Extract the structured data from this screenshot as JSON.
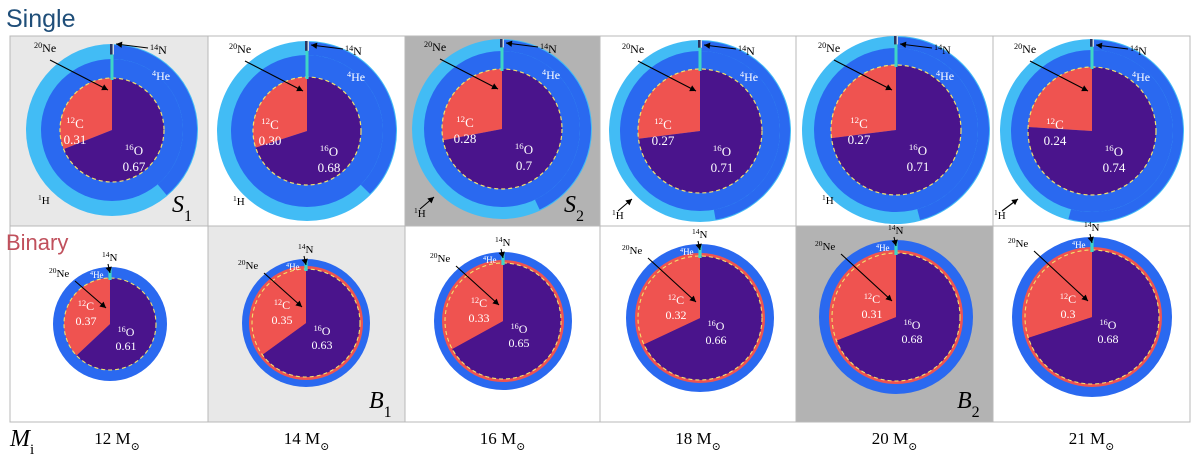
{
  "labels": {
    "single_row": "Single",
    "binary_row": "Binary",
    "mass_axis": "M",
    "mass_axis_sub": "i",
    "isotopes": {
      "ne": {
        "mass": "20",
        "sym": "Ne"
      },
      "n": {
        "mass": "14",
        "sym": "N"
      },
      "he": {
        "mass": "4",
        "sym": "He"
      },
      "h": {
        "mass": "1",
        "sym": "H"
      },
      "c": {
        "mass": "12",
        "sym": "C"
      },
      "o": {
        "mass": "16",
        "sym": "O"
      }
    }
  },
  "colors": {
    "hydrogen": "#42bcf5",
    "helium": "#2a69f0",
    "carbon": "#ef5350",
    "oxygen": "#4a148c",
    "nitrogen": "#3fd6c6",
    "neon": "#2a3560",
    "core_boundary": "#f2e26b",
    "single_title": "#1f4e79",
    "binary_title": "#c0505c",
    "panel_light": "#e8e8e8",
    "panel_dark": "#b3b3b3",
    "panel_white": "#ffffff"
  },
  "masses": [
    {
      "value": "12",
      "unit": "M",
      "sym": "⊙"
    },
    {
      "value": "14",
      "unit": "M",
      "sym": "⊙"
    },
    {
      "value": "16",
      "unit": "M",
      "sym": "⊙"
    },
    {
      "value": "18",
      "unit": "M",
      "sym": "⊙"
    },
    {
      "value": "20",
      "unit": "M",
      "sym": "⊙"
    },
    {
      "value": "21",
      "unit": "M",
      "sym": "⊙"
    }
  ],
  "single": [
    {
      "c12": "0.31",
      "o16": "0.67",
      "c_fraction": 0.31,
      "bg": "light",
      "marker": {
        "letter": "S",
        "sub": "1"
      }
    },
    {
      "c12": "0.30",
      "o16": "0.68",
      "c_fraction": 0.3,
      "bg": "white",
      "marker": null
    },
    {
      "c12": "0.28",
      "o16": "0.7",
      "c_fraction": 0.28,
      "bg": "dark",
      "marker": {
        "letter": "S",
        "sub": "2"
      }
    },
    {
      "c12": "0.27",
      "o16": "0.71",
      "c_fraction": 0.27,
      "bg": "white",
      "marker": null
    },
    {
      "c12": "0.27",
      "o16": "0.71",
      "c_fraction": 0.27,
      "bg": "white",
      "marker": null
    },
    {
      "c12": "0.24",
      "o16": "0.74",
      "c_fraction": 0.24,
      "bg": "white",
      "marker": null
    }
  ],
  "binary": [
    {
      "c12": "0.37",
      "o16": "0.61",
      "c_fraction": 0.37,
      "bg": "white",
      "marker": null
    },
    {
      "c12": "0.35",
      "o16": "0.63",
      "c_fraction": 0.35,
      "bg": "light",
      "marker": {
        "letter": "B",
        "sub": "1"
      }
    },
    {
      "c12": "0.33",
      "o16": "0.65",
      "c_fraction": 0.33,
      "bg": "white",
      "marker": null
    },
    {
      "c12": "0.32",
      "o16": "0.66",
      "c_fraction": 0.32,
      "bg": "white",
      "marker": null
    },
    {
      "c12": "0.31",
      "o16": "0.68",
      "c_fraction": 0.31,
      "bg": "dark",
      "marker": {
        "letter": "B",
        "sub": "2"
      }
    },
    {
      "c12": "0.3",
      "o16": "0.68",
      "c_fraction": 0.3,
      "bg": "white",
      "marker": null
    }
  ]
}
